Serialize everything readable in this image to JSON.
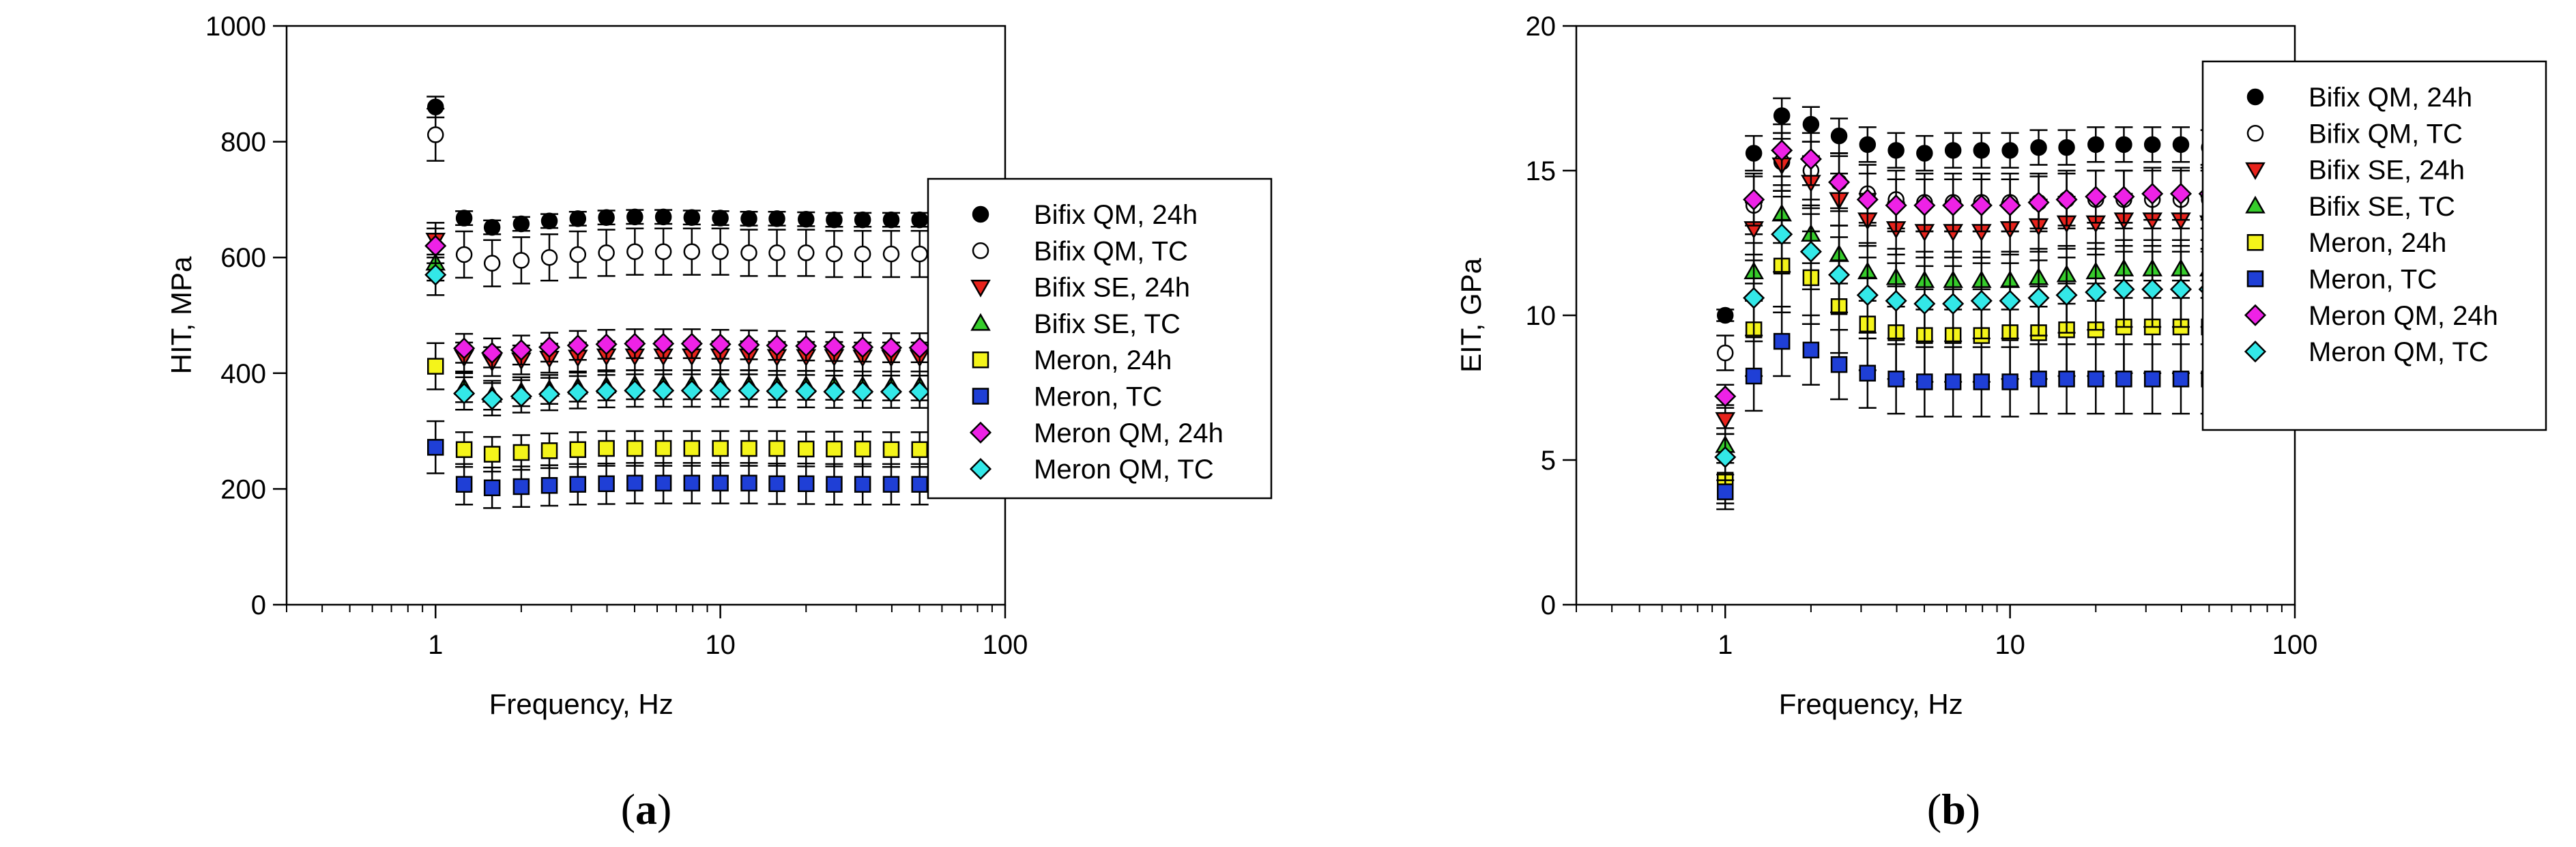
{
  "colors": {
    "black": "#000000",
    "white": "#ffffff",
    "red": "#e8231c",
    "green": "#36cc2b",
    "yellow": "#f4f41a",
    "blue": "#1f3fd6",
    "magenta": "#ee22e6",
    "cyan": "#33e8e8"
  },
  "chart_data": [
    {
      "type": "scatter",
      "panel_label": "(a)",
      "panel_letter": "a",
      "title": "",
      "xlabel": "Frequency, Hz",
      "ylabel": "HIT, MPa",
      "xscale": "log",
      "xlim": [
        0.3,
        100
      ],
      "ylim": [
        0,
        1000
      ],
      "xticks": [
        1,
        10,
        100
      ],
      "xtick_labels": [
        "1",
        "10",
        "100"
      ],
      "yticks": [
        0,
        200,
        400,
        600,
        800,
        1000
      ],
      "ytick_labels": [
        "0",
        "200",
        "400",
        "600",
        "800",
        "1000"
      ],
      "grid": false,
      "legend_position": "right",
      "x": [
        1.0,
        1.26,
        1.58,
        2.0,
        2.51,
        3.16,
        3.98,
        5.01,
        6.31,
        7.94,
        10.0,
        12.6,
        15.8,
        20.0,
        25.1,
        31.6,
        39.8,
        50.1
      ],
      "series": [
        {
          "name": "Bifix QM, 24h",
          "marker": "circle",
          "color": "black",
          "values": [
            860,
            668,
            652,
            658,
            663,
            667,
            669,
            670,
            670,
            669,
            668,
            667,
            667,
            666,
            665,
            665,
            665,
            665
          ],
          "errors": [
            18,
            12,
            12,
            12,
            12,
            12,
            12,
            12,
            12,
            12,
            12,
            12,
            12,
            12,
            12,
            12,
            12,
            12
          ]
        },
        {
          "name": "Bifix QM, TC",
          "marker": "circle-open",
          "color": "white",
          "values": [
            812,
            605,
            590,
            595,
            600,
            605,
            608,
            610,
            610,
            610,
            610,
            608,
            608,
            608,
            606,
            606,
            606,
            606
          ],
          "errors": [
            45,
            40,
            40,
            40,
            40,
            40,
            40,
            40,
            40,
            40,
            40,
            40,
            40,
            40,
            40,
            40,
            40,
            40
          ]
        },
        {
          "name": "Bifix SE, 24h",
          "marker": "triangle-down",
          "color": "red",
          "values": [
            630,
            428,
            420,
            423,
            426,
            428,
            430,
            430,
            430,
            430,
            430,
            430,
            429,
            429,
            429,
            428,
            428,
            428
          ],
          "errors": [
            30,
            25,
            25,
            25,
            25,
            25,
            25,
            25,
            25,
            25,
            25,
            25,
            25,
            25,
            25,
            25,
            25,
            25
          ]
        },
        {
          "name": "Bifix SE, TC",
          "marker": "triangle-up",
          "color": "green",
          "values": [
            590,
            375,
            362,
            368,
            372,
            376,
            378,
            380,
            380,
            380,
            380,
            380,
            379,
            379,
            379,
            378,
            378,
            378
          ],
          "errors": [
            30,
            25,
            25,
            25,
            25,
            25,
            25,
            25,
            25,
            25,
            25,
            25,
            25,
            25,
            25,
            25,
            25,
            25
          ]
        },
        {
          "name": "Meron, 24h",
          "marker": "square",
          "color": "yellow",
          "values": [
            412,
            268,
            260,
            263,
            266,
            268,
            270,
            270,
            270,
            270,
            270,
            270,
            270,
            269,
            269,
            269,
            268,
            268
          ],
          "errors": [
            40,
            30,
            30,
            30,
            30,
            30,
            30,
            30,
            30,
            30,
            30,
            30,
            30,
            30,
            30,
            30,
            30,
            30
          ]
        },
        {
          "name": "Meron, TC",
          "marker": "square",
          "color": "blue",
          "values": [
            272,
            208,
            202,
            204,
            206,
            208,
            209,
            210,
            210,
            210,
            210,
            210,
            209,
            209,
            208,
            208,
            208,
            208
          ],
          "errors": [
            45,
            35,
            35,
            35,
            35,
            35,
            35,
            35,
            35,
            35,
            35,
            35,
            35,
            35,
            35,
            35,
            35,
            35
          ]
        },
        {
          "name": "Meron QM, 24h",
          "marker": "diamond",
          "color": "magenta",
          "values": [
            620,
            443,
            435,
            440,
            445,
            448,
            450,
            451,
            451,
            451,
            450,
            449,
            448,
            447,
            446,
            445,
            444,
            444
          ],
          "errors": [
            30,
            25,
            25,
            25,
            25,
            25,
            25,
            25,
            25,
            25,
            25,
            25,
            25,
            25,
            25,
            25,
            25,
            25
          ]
        },
        {
          "name": "Meron QM, TC",
          "marker": "diamond",
          "color": "cyan",
          "values": [
            570,
            365,
            355,
            360,
            364,
            367,
            369,
            370,
            370,
            370,
            370,
            370,
            369,
            369,
            368,
            368,
            368,
            368
          ],
          "errors": [
            35,
            28,
            28,
            28,
            28,
            28,
            28,
            28,
            28,
            28,
            28,
            28,
            28,
            28,
            28,
            28,
            28,
            28
          ]
        }
      ]
    },
    {
      "type": "scatter",
      "panel_label": "(b)",
      "panel_letter": "b",
      "title": "",
      "xlabel": "Frequency, Hz",
      "ylabel": "EIT, GPa",
      "xscale": "log",
      "xlim": [
        0.3,
        100
      ],
      "ylim": [
        0,
        20
      ],
      "xticks": [
        1,
        10,
        100
      ],
      "xtick_labels": [
        "1",
        "10",
        "100"
      ],
      "yticks": [
        0,
        5,
        10,
        15,
        20
      ],
      "ytick_labels": [
        "0",
        "5",
        "10",
        "15",
        "20"
      ],
      "grid": false,
      "legend_position": "top-right",
      "x": [
        1.0,
        1.26,
        1.58,
        2.0,
        2.51,
        3.16,
        3.98,
        5.01,
        6.31,
        7.94,
        10.0,
        12.6,
        15.8,
        20.0,
        25.1,
        31.6,
        39.8,
        50.1
      ],
      "series": [
        {
          "name": "Bifix QM, 24h",
          "marker": "circle",
          "color": "black",
          "values": [
            10.0,
            15.6,
            16.9,
            16.6,
            16.2,
            15.9,
            15.7,
            15.6,
            15.7,
            15.7,
            15.7,
            15.8,
            15.8,
            15.9,
            15.9,
            15.9,
            15.9,
            15.8
          ],
          "errors": [
            0.2,
            0.6,
            0.6,
            0.6,
            0.6,
            0.6,
            0.6,
            0.6,
            0.6,
            0.6,
            0.6,
            0.6,
            0.6,
            0.6,
            0.6,
            0.6,
            0.6,
            0.6
          ]
        },
        {
          "name": "Bifix QM, TC",
          "marker": "circle-open",
          "color": "white",
          "values": [
            8.7,
            13.8,
            15.3,
            15.0,
            14.6,
            14.2,
            14.0,
            13.9,
            13.9,
            13.9,
            13.9,
            13.9,
            14.0,
            14.0,
            14.0,
            14.0,
            14.0,
            14.0
          ],
          "errors": [
            0.6,
            1.0,
            1.0,
            1.0,
            1.0,
            1.0,
            1.0,
            1.0,
            1.0,
            1.0,
            1.0,
            1.0,
            1.0,
            1.0,
            1.0,
            1.0,
            1.0,
            1.0
          ]
        },
        {
          "name": "Bifix SE, 24h",
          "marker": "triangle-down",
          "color": "red",
          "values": [
            6.4,
            13.0,
            15.2,
            14.6,
            14.0,
            13.3,
            13.0,
            12.9,
            12.9,
            12.9,
            13.0,
            13.1,
            13.2,
            13.2,
            13.3,
            13.3,
            13.3,
            13.2
          ],
          "errors": [
            0.5,
            0.9,
            0.9,
            0.9,
            0.9,
            0.9,
            0.9,
            0.9,
            0.9,
            0.9,
            0.9,
            0.9,
            0.9,
            0.9,
            0.9,
            0.9,
            0.9,
            0.9
          ]
        },
        {
          "name": "Bifix SE, TC",
          "marker": "triangle-up",
          "color": "green",
          "values": [
            5.5,
            11.5,
            13.5,
            12.8,
            12.1,
            11.5,
            11.3,
            11.2,
            11.2,
            11.2,
            11.2,
            11.3,
            11.4,
            11.5,
            11.6,
            11.6,
            11.6,
            11.6
          ],
          "errors": [
            0.6,
            1.0,
            1.0,
            1.0,
            1.0,
            1.0,
            1.0,
            1.0,
            1.0,
            1.0,
            1.0,
            1.0,
            1.0,
            1.0,
            1.0,
            1.0,
            1.0,
            1.0
          ]
        },
        {
          "name": "Meron, 24h",
          "marker": "square",
          "color": "yellow",
          "values": [
            4.3,
            9.5,
            11.7,
            11.3,
            10.3,
            9.7,
            9.4,
            9.3,
            9.3,
            9.3,
            9.4,
            9.4,
            9.5,
            9.5,
            9.6,
            9.6,
            9.6,
            9.6
          ],
          "errors": [
            0.8,
            1.6,
            1.6,
            1.6,
            1.6,
            1.6,
            1.6,
            1.6,
            1.6,
            1.6,
            1.6,
            1.6,
            1.6,
            1.6,
            1.6,
            1.6,
            1.6,
            1.6
          ]
        },
        {
          "name": "Meron, TC",
          "marker": "square",
          "color": "blue",
          "values": [
            3.9,
            7.9,
            9.1,
            8.8,
            8.3,
            8.0,
            7.8,
            7.7,
            7.7,
            7.7,
            7.7,
            7.8,
            7.8,
            7.8,
            7.8,
            7.8,
            7.8,
            7.8
          ],
          "errors": [
            0.6,
            1.2,
            1.2,
            1.2,
            1.2,
            1.2,
            1.2,
            1.2,
            1.2,
            1.2,
            1.2,
            1.2,
            1.2,
            1.2,
            1.2,
            1.2,
            1.2,
            1.2
          ]
        },
        {
          "name": "Meron QM, 24h",
          "marker": "diamond",
          "color": "magenta",
          "values": [
            7.2,
            14.0,
            15.7,
            15.4,
            14.6,
            14.0,
            13.8,
            13.8,
            13.8,
            13.8,
            13.8,
            13.9,
            14.0,
            14.1,
            14.1,
            14.2,
            14.2,
            14.2
          ],
          "errors": [
            0.4,
            0.9,
            0.9,
            0.9,
            0.9,
            0.9,
            0.9,
            0.9,
            0.9,
            0.9,
            0.9,
            0.9,
            0.9,
            0.9,
            0.9,
            0.9,
            0.9,
            0.9
          ]
        },
        {
          "name": "Meron QM, TC",
          "marker": "diamond",
          "color": "cyan",
          "values": [
            5.1,
            10.6,
            12.8,
            12.2,
            11.4,
            10.7,
            10.5,
            10.4,
            10.4,
            10.5,
            10.5,
            10.6,
            10.7,
            10.8,
            10.9,
            10.9,
            10.9,
            10.9
          ],
          "errors": [
            0.8,
            1.3,
            1.3,
            1.3,
            1.3,
            1.3,
            1.3,
            1.3,
            1.3,
            1.3,
            1.3,
            1.3,
            1.3,
            1.3,
            1.3,
            1.3,
            1.3,
            1.3
          ]
        }
      ]
    }
  ]
}
